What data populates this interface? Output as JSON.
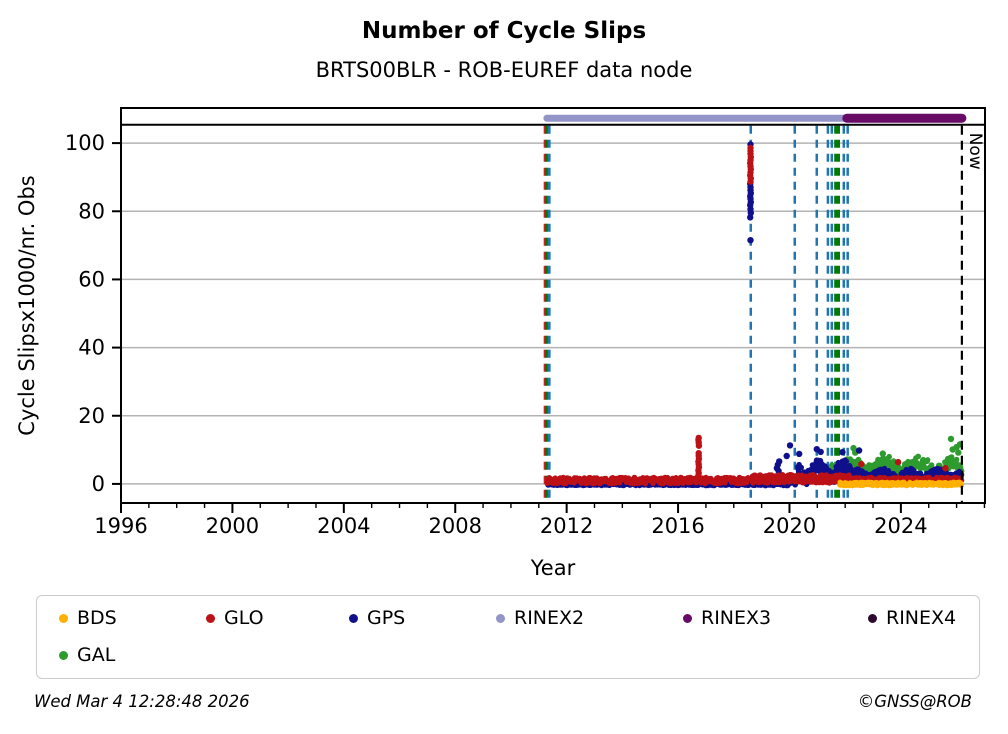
{
  "header": {
    "title": "Number of Cycle Slips",
    "subtitle": "BRTS00BLR - ROB-EUREF data node"
  },
  "footer": {
    "timestamp": "Wed Mar  4 12:28:48 2026",
    "copyright": "©GNSS@ROB"
  },
  "legend": [
    {
      "id": "bds",
      "label": "BDS",
      "color": "#ffb000"
    },
    {
      "id": "glo",
      "label": "GLO",
      "color": "#bb1117"
    },
    {
      "id": "gps",
      "label": "GPS",
      "color": "#10108c"
    },
    {
      "id": "rinex2",
      "label": "RINEX2",
      "color": "#9394c8"
    },
    {
      "id": "rinex3",
      "label": "RINEX3",
      "color": "#670b67"
    },
    {
      "id": "rinex4",
      "label": "RINEX4",
      "color": "#2d0a2d"
    },
    {
      "id": "gal",
      "label": "GAL",
      "color": "#2e9b2e"
    }
  ],
  "chart_data": {
    "type": "scatter",
    "title": "Number of Cycle Slips",
    "subtitle": "BRTS00BLR - ROB-EUREF data node",
    "xlabel": "Year",
    "ylabel": "Cycle Slipsx1000/nr. Obs",
    "xlim": [
      1996,
      2027.02
    ],
    "ylim": [
      -5.6,
      110.3
    ],
    "xticks_major": [
      1996,
      2000,
      2004,
      2008,
      2012,
      2016,
      2020,
      2024
    ],
    "xticks_minor_step": 1,
    "yticks": [
      0,
      20,
      40,
      60,
      80,
      100
    ],
    "grid": "horizontal",
    "grid_color": "#b3b3b3",
    "top_rule_y": 105.4,
    "now_line": {
      "x": 2026.19,
      "label": "Now",
      "color": "#000000"
    },
    "event_lines": [
      {
        "x": 2011.22,
        "color": "#cc2222",
        "width": 2.5
      },
      {
        "x": 2011.28,
        "color": "#007a00",
        "width": 3
      },
      {
        "x": 2011.37,
        "color": "#2076b4",
        "width": 3
      },
      {
        "x": 2018.61,
        "color": "#2076b4",
        "width": 2.5
      },
      {
        "x": 2020.19,
        "color": "#2076b4",
        "width": 2.5
      },
      {
        "x": 2020.98,
        "color": "#2076b4",
        "width": 2.5
      },
      {
        "x": 2021.38,
        "color": "#2076b4",
        "width": 2.5
      },
      {
        "x": 2021.52,
        "color": "#2076b4",
        "width": 2.5
      },
      {
        "x": 2021.66,
        "color": "#007a00",
        "width": 3
      },
      {
        "x": 2021.76,
        "color": "#007a00",
        "width": 3
      },
      {
        "x": 2021.95,
        "color": "#2076b4",
        "width": 2.5
      },
      {
        "x": 2022.09,
        "color": "#2076b4",
        "width": 2.5
      }
    ],
    "bars": [
      {
        "name": "RINEX2",
        "start": 2011.29,
        "end": 2021.99,
        "y": 107.3,
        "color": "#9394c8",
        "width": 7
      },
      {
        "name": "RINEX3",
        "start": 2022.06,
        "end": 2026.19,
        "y": 107.3,
        "color": "#670b67",
        "width": 9
      }
    ],
    "series": [
      {
        "name": "GAL",
        "color": "#2e9b2e",
        "seed": 4,
        "r": 2.8,
        "segments": [
          {
            "x0": 2021.5,
            "x1": 2026.19,
            "base": 5.2,
            "spread": 1.9,
            "wave_amp": 1.2,
            "wave_freq": 5.2,
            "step": 0.02
          }
        ],
        "points": [
          [
            2022.3,
            10.5
          ],
          [
            2022.36,
            9.2
          ],
          [
            2023.35,
            8.9
          ],
          [
            2025.8,
            13.2
          ],
          [
            2025.86,
            10.1
          ],
          [
            2026.0,
            10.8
          ],
          [
            2026.06,
            9.2
          ],
          [
            2026.12,
            11.6
          ]
        ]
      },
      {
        "name": "GPS",
        "color": "#10108c",
        "seed": 3,
        "r": 2.8,
        "segments": [
          {
            "x0": 2011.32,
            "x1": 2018.55,
            "base": 0.1,
            "spread": 0.55,
            "step": 0.015
          },
          {
            "x0": 2018.66,
            "x1": 2019.95,
            "base": 0.2,
            "spread": 0.7,
            "step": 0.015
          },
          {
            "x0": 2019.95,
            "x1": 2020.3,
            "base": 1.0,
            "spread": 1.3,
            "step": 0.015
          },
          {
            "x0": 2020.3,
            "x1": 2022.2,
            "base": 3.6,
            "spread": 2.0,
            "wave_amp": 1.8,
            "wave_freq": 7.1,
            "step": 0.015
          },
          {
            "x0": 2022.2,
            "x1": 2026.19,
            "base": 2.3,
            "spread": 1.5,
            "wave_amp": 0.8,
            "wave_freq": 6.3,
            "step": 0.015
          }
        ],
        "points": [
          [
            2018.6,
            99.6
          ],
          [
            2018.6,
            71.5
          ],
          [
            2018.59,
            78.2
          ],
          [
            2018.61,
            79.5
          ],
          [
            2018.6,
            80.6
          ],
          [
            2018.59,
            81.8
          ],
          [
            2018.61,
            82.7
          ],
          [
            2018.6,
            83.6
          ],
          [
            2018.59,
            84.4
          ],
          [
            2018.61,
            85.3
          ],
          [
            2018.6,
            86.2
          ],
          [
            2018.6,
            87.1
          ],
          [
            2018.59,
            88.0
          ],
          [
            2019.55,
            4.6
          ],
          [
            2019.58,
            5.6
          ],
          [
            2019.61,
            3.8
          ],
          [
            2019.63,
            6.6
          ],
          [
            2019.9,
            8.2
          ],
          [
            2020.02,
            11.3
          ],
          [
            2020.35,
            8.8
          ],
          [
            2020.98,
            10.2
          ],
          [
            2021.12,
            9.4
          ],
          [
            2021.9,
            9.3
          ],
          [
            2022.5,
            9.8
          ]
        ]
      },
      {
        "name": "GLO",
        "color": "#bb1117",
        "seed": 2,
        "r": 2.8,
        "segments": [
          {
            "x0": 2011.3,
            "x1": 2016.68,
            "base": 1.0,
            "spread": 0.9,
            "density": 0.75,
            "step": 0.018
          },
          {
            "x0": 2016.82,
            "x1": 2018.55,
            "base": 1.0,
            "spread": 0.9,
            "density": 0.85,
            "step": 0.018
          },
          {
            "x0": 2018.66,
            "x1": 2022.2,
            "base": 1.5,
            "spread": 1.2,
            "step": 0.015
          },
          {
            "x0": 2022.2,
            "x1": 2026.19,
            "base": 1.0,
            "spread": 0.9,
            "step": 0.015
          }
        ],
        "points": [
          [
            2016.72,
            2.2
          ],
          [
            2016.74,
            3.1
          ],
          [
            2016.73,
            4.0
          ],
          [
            2016.75,
            4.9
          ],
          [
            2016.74,
            5.7
          ],
          [
            2016.73,
            6.5
          ],
          [
            2016.75,
            7.3
          ],
          [
            2016.74,
            8.2
          ],
          [
            2016.74,
            9.0
          ],
          [
            2016.75,
            11.2
          ],
          [
            2016.74,
            12.1
          ],
          [
            2016.73,
            12.9
          ],
          [
            2016.74,
            13.5
          ],
          [
            2018.6,
            88.7
          ],
          [
            2018.61,
            89.6
          ],
          [
            2018.59,
            90.5
          ],
          [
            2018.6,
            91.4
          ],
          [
            2018.61,
            92.3
          ],
          [
            2018.6,
            93.2
          ],
          [
            2018.59,
            94.1
          ],
          [
            2018.6,
            95.0
          ],
          [
            2018.61,
            95.9
          ],
          [
            2018.6,
            96.8
          ],
          [
            2018.6,
            97.7
          ],
          [
            2018.6,
            98.6
          ],
          [
            2023.9,
            6.4
          ],
          [
            2025.6,
            4.6
          ],
          [
            2022.58,
            5.8
          ]
        ]
      },
      {
        "name": "BDS",
        "color": "#ffb000",
        "seed": 1,
        "r": 2.5,
        "segments": [
          {
            "x0": 2021.8,
            "x1": 2026.19,
            "base": 0.0,
            "spread": 0.55,
            "step": 0.015
          }
        ],
        "points": []
      }
    ],
    "legend_entries": [
      "BDS",
      "GLO",
      "GPS",
      "RINEX2",
      "RINEX3",
      "RINEX4",
      "GAL"
    ]
  }
}
